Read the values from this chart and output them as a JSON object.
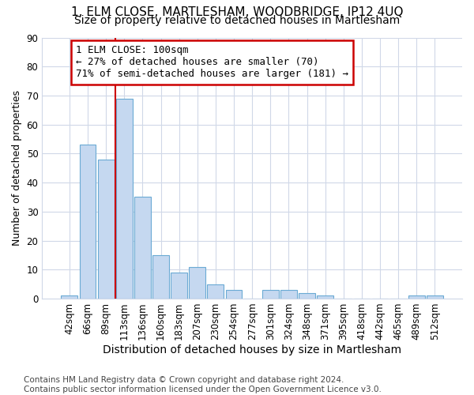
{
  "title": "1, ELM CLOSE, MARTLESHAM, WOODBRIDGE, IP12 4UQ",
  "subtitle": "Size of property relative to detached houses in Martlesham",
  "xlabel": "Distribution of detached houses by size in Martlesham",
  "ylabel": "Number of detached properties",
  "categories": [
    "42sqm",
    "66sqm",
    "89sqm",
    "113sqm",
    "136sqm",
    "160sqm",
    "183sqm",
    "207sqm",
    "230sqm",
    "254sqm",
    "277sqm",
    "301sqm",
    "324sqm",
    "348sqm",
    "371sqm",
    "395sqm",
    "418sqm",
    "442sqm",
    "465sqm",
    "489sqm",
    "512sqm"
  ],
  "values": [
    1,
    53,
    48,
    69,
    35,
    15,
    9,
    11,
    5,
    3,
    0,
    3,
    3,
    2,
    1,
    0,
    0,
    0,
    0,
    1,
    1
  ],
  "bar_color": "#c5d8f0",
  "bar_edge_color": "#6aaad4",
  "vline_x_index": 2.5,
  "vline_color": "#cc0000",
  "annotation_text": "1 ELM CLOSE: 100sqm\n← 27% of detached houses are smaller (70)\n71% of semi-detached houses are larger (181) →",
  "annotation_box_color": "#ffffff",
  "annotation_box_edge_color": "#cc0000",
  "ylim": [
    0,
    90
  ],
  "yticks": [
    0,
    10,
    20,
    30,
    40,
    50,
    60,
    70,
    80,
    90
  ],
  "footnote": "Contains HM Land Registry data © Crown copyright and database right 2024.\nContains public sector information licensed under the Open Government Licence v3.0.",
  "fig_bg_color": "#ffffff",
  "plot_bg_color": "#ffffff",
  "grid_color": "#d0d8e8",
  "title_fontsize": 11,
  "subtitle_fontsize": 10,
  "xlabel_fontsize": 10,
  "ylabel_fontsize": 9,
  "footnote_fontsize": 7.5,
  "tick_fontsize": 8.5,
  "annot_fontsize": 9
}
